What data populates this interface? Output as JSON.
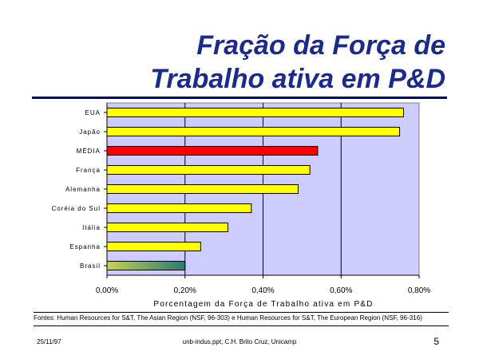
{
  "slide": {
    "title_line1": "Fração da Força de",
    "title_line2": "Trabalho ativa em P&D",
    "source": "Fontes: Human Resources for S&T, The Asian Region (NSF, 96-303) e Human Resources for S&T, The European Region (NSF, 96-316)",
    "footer_date": "25/11/97",
    "footer_center": "unb-indus.ppt, C.H. Brito Cruz, Unicamp",
    "page_number": "5"
  },
  "colors": {
    "title": "#1c2a8c",
    "plot_background": "#ccccff",
    "bar_default": "#ffff00",
    "bar_highlight": "#ff0000",
    "bar_gradient_start": "#c8d250",
    "bar_gradient_end": "#2a7a78"
  },
  "chart_data": {
    "type": "bar",
    "orientation": "horizontal",
    "categories": [
      "EUA",
      "Japão",
      "MÉDIA",
      "França",
      "Alemanha",
      "Coréia do Sul",
      "Itália",
      "Espanha",
      "Brasil"
    ],
    "values": [
      0.76,
      0.75,
      0.54,
      0.52,
      0.49,
      0.37,
      0.31,
      0.24,
      0.2
    ],
    "highlight": [
      "normal",
      "normal",
      "red",
      "normal",
      "normal",
      "normal",
      "normal",
      "normal",
      "gradient"
    ],
    "title": "",
    "xlabel": "Porcentagem da Força de Trabalho ativa em P&D",
    "ylabel": "",
    "xlim": [
      0,
      0.8
    ],
    "xticks": [
      0,
      0.2,
      0.4,
      0.6,
      0.8
    ],
    "xtick_labels": [
      "0,00%",
      "0,20%",
      "0,40%",
      "0,60%",
      "0,80%"
    ],
    "grid": "vertical"
  }
}
